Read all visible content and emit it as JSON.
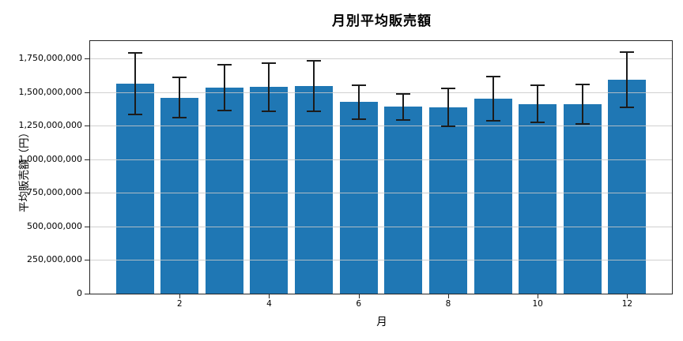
{
  "chart_data": {
    "type": "bar",
    "title": "月別平均販売額",
    "xlabel": "月",
    "ylabel": "平均販売額（円）",
    "categories": [
      1,
      2,
      3,
      4,
      5,
      6,
      7,
      8,
      9,
      10,
      11,
      12
    ],
    "values": [
      1562000000,
      1458000000,
      1532000000,
      1537000000,
      1544000000,
      1426000000,
      1390000000,
      1386000000,
      1450000000,
      1411000000,
      1412000000,
      1591000000
    ],
    "error_bars": [
      230000000,
      150000000,
      170000000,
      178000000,
      187000000,
      127000000,
      97000000,
      142000000,
      164000000,
      138000000,
      147000000,
      205000000
    ],
    "xlim": [
      0,
      13
    ],
    "ylim": [
      0,
      1880000000
    ],
    "x_ticks": [
      {
        "pos": 2,
        "label": "2"
      },
      {
        "pos": 4,
        "label": "4"
      },
      {
        "pos": 6,
        "label": "6"
      },
      {
        "pos": 8,
        "label": "8"
      },
      {
        "pos": 10,
        "label": "10"
      },
      {
        "pos": 12,
        "label": "12"
      }
    ],
    "y_ticks": [
      {
        "value": 0,
        "label": "0"
      },
      {
        "value": 250000000,
        "label": "250,000,000"
      },
      {
        "value": 500000000,
        "label": "500,000,000"
      },
      {
        "value": 750000000,
        "label": "750,000,000"
      },
      {
        "value": 1000000000,
        "label": "1,000,000,000"
      },
      {
        "value": 1250000000,
        "label": "1,250,000,000"
      },
      {
        "value": 1500000000,
        "label": "1,500,000,000"
      },
      {
        "value": 1750000000,
        "label": "1,750,000,000"
      }
    ],
    "grid": "horizontal-gridlines-over-bars",
    "legend": "none",
    "bar_color": "#1f77b4",
    "error_color": "#1c1c1c",
    "grid_color": "#c8c8c8",
    "spine_color": "#262626",
    "background_color": "#ffffff"
  }
}
